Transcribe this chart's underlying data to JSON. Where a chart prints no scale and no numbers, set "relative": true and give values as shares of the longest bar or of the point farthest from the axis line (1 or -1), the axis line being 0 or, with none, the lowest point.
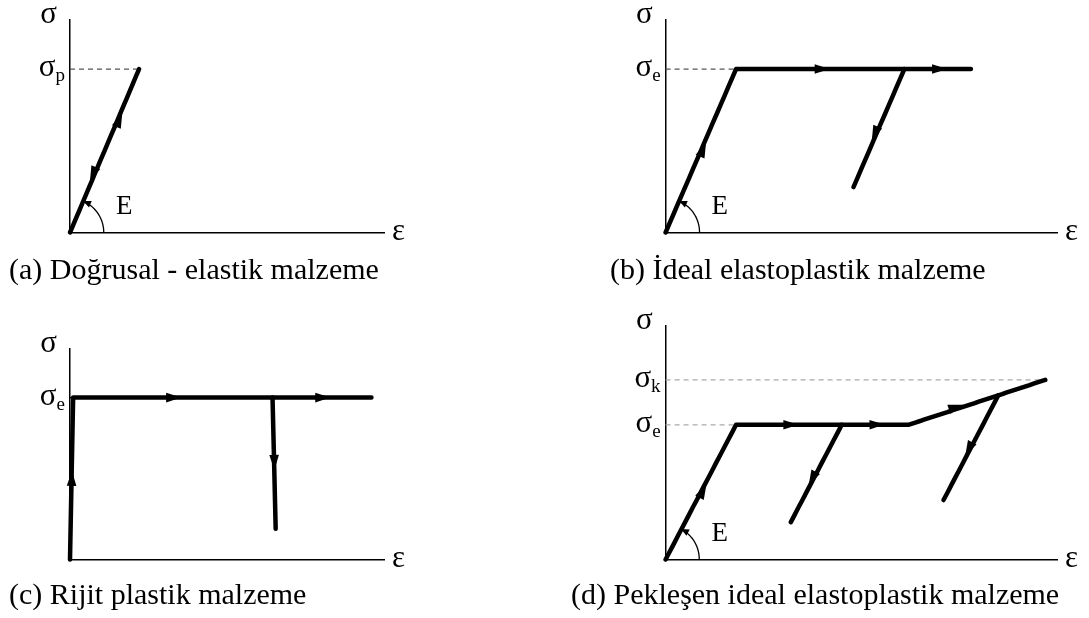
{
  "chart_data": [
    {
      "type": "line",
      "title": "(a) Doğrusal - elastik malzeme",
      "xlabel": "ε",
      "ylabel": "σ",
      "relative": true,
      "categories": [
        null,
        null,
        null,
        null,
        null,
        null,
        null,
        null,
        null,
        null,
        null,
        null,
        null,
        null,
        null,
        null,
        null,
        null,
        null,
        null,
        null,
        null,
        null,
        null,
        null,
        null,
        null,
        null,
        null,
        null,
        null,
        null,
        null,
        null,
        null,
        null,
        null,
        null,
        null,
        null,
        null,
        null,
        null,
        null,
        null,
        null,
        null,
        null,
        null,
        null,
        null,
        null,
        null,
        null,
        null,
        null,
        null,
        null,
        null,
        null,
        null,
        null,
        null,
        null,
        null,
        null,
        null,
        null,
        null,
        null,
        null,
        null,
        null,
        null,
        null,
        null,
        null,
        null,
        null,
        null,
        null,
        null,
        null,
        null,
        null,
        null,
        null,
        null,
        null,
        null,
        null,
        null,
        null,
        null,
        null,
        null,
        null,
        null,
        null,
        null,
        null
      ],
      "series": [
        {
          "color": "#000000",
          "values": [
            0,
            0.045,
            0.091,
            0.136,
            0.182,
            0.227,
            0.273,
            0.318,
            0.364,
            0.409,
            0.455,
            0.5,
            0.545,
            0.591,
            0.636,
            0.682,
            0.727,
            0.773,
            0.818,
            0.864,
            0.909,
            0.955,
            1,
            null,
            null,
            null,
            null,
            null,
            null,
            null,
            null,
            null,
            null,
            null,
            null,
            null,
            null,
            null,
            null,
            null,
            null,
            null,
            null,
            null,
            null,
            null,
            null,
            null,
            null,
            null,
            null,
            null,
            null,
            null,
            null,
            null,
            null,
            null,
            null,
            null,
            null,
            null,
            null,
            null,
            null,
            null,
            null,
            null,
            null,
            null,
            null,
            null,
            null,
            null,
            null,
            null,
            null,
            null,
            null,
            null,
            null,
            null,
            null,
            null,
            null,
            null,
            null,
            null,
            null,
            null,
            null,
            null,
            null,
            null,
            null,
            null,
            null,
            null,
            null,
            null,
            null
          ]
        }
      ],
      "ref_lines": [
        {
          "axis": "y",
          "value": 1,
          "label": "σ$_{p}$",
          "color": "#555555",
          "line_style": "dashed"
        }
      ],
      "annotations": [
        "E"
      ]
    },
    {
      "type": "line",
      "title": "(b) İdeal elastoplastik malzeme",
      "xlabel": "ε",
      "ylabel": "σ",
      "relative": true,
      "categories": [
        null,
        null,
        null,
        null,
        null,
        null,
        null,
        null,
        null,
        null,
        null,
        null,
        null,
        null,
        null,
        null,
        null,
        null,
        null,
        null,
        null,
        null,
        null,
        null,
        null,
        null,
        null,
        null,
        null,
        null,
        null,
        null,
        null,
        null,
        null,
        null,
        null,
        null,
        null,
        null,
        null,
        null,
        null,
        null,
        null,
        null,
        null,
        null,
        null,
        null,
        null,
        null,
        null,
        null,
        null,
        null,
        null,
        null,
        null,
        null,
        null,
        null,
        null,
        null,
        null,
        null,
        null,
        null,
        null,
        null,
        null,
        null,
        null,
        null,
        null,
        null,
        null,
        null,
        null,
        null,
        null,
        null,
        null,
        null,
        null,
        null,
        null,
        null,
        null,
        null,
        null,
        null,
        null,
        null,
        null,
        null,
        null,
        null,
        null,
        null,
        null
      ],
      "series": [
        {
          "color": "#000000",
          "values": [
            0,
            0.056,
            0.111,
            0.167,
            0.222,
            0.278,
            0.333,
            0.389,
            0.444,
            0.5,
            0.556,
            0.611,
            0.667,
            0.722,
            0.778,
            0.833,
            0.889,
            0.944,
            1,
            1,
            1,
            1,
            1,
            1,
            1,
            1,
            1,
            1,
            1,
            1,
            1,
            1,
            1,
            1,
            1,
            1,
            1,
            1,
            1,
            1,
            1,
            1,
            1,
            1,
            1,
            1,
            1,
            1,
            1,
            1,
            1,
            1,
            1,
            1,
            1,
            1,
            1,
            1,
            1,
            1,
            1,
            1,
            1,
            1,
            1,
            1,
            1,
            1,
            1,
            1,
            1,
            1,
            1,
            1,
            1,
            1,
            1,
            1,
            1,
            null,
            null,
            null,
            null,
            null,
            null,
            null,
            null,
            null,
            null,
            null,
            null,
            null,
            null,
            null,
            null,
            null,
            null,
            null,
            null,
            null,
            null
          ]
        },
        {
          "color": "#000000",
          "values": [
            null,
            null,
            null,
            null,
            null,
            null,
            null,
            null,
            null,
            null,
            null,
            null,
            null,
            null,
            null,
            null,
            null,
            null,
            null,
            null,
            null,
            null,
            null,
            null,
            null,
            null,
            null,
            null,
            null,
            null,
            null,
            null,
            null,
            null,
            null,
            null,
            null,
            null,
            null,
            null,
            null,
            null,
            null,
            null,
            null,
            null,
            null,
            null,
            0.278,
            0.333,
            0.389,
            0.444,
            0.5,
            0.556,
            0.611,
            0.667,
            0.722,
            0.778,
            0.833,
            0.889,
            0.944,
            1,
            null,
            null,
            null,
            null,
            null,
            null,
            null,
            null,
            null,
            null,
            null,
            null,
            null,
            null,
            null,
            null,
            null,
            null,
            null,
            null,
            null,
            null,
            null,
            null,
            null,
            null,
            null,
            null,
            null,
            null,
            null,
            null,
            null,
            null,
            null,
            null,
            null,
            null,
            null
          ]
        }
      ],
      "ref_lines": [
        {
          "axis": "y",
          "value": 1,
          "label": "σ$_{e}$",
          "color": "#555555",
          "line_style": "dashed"
        }
      ],
      "annotations": [
        "E"
      ]
    },
    {
      "type": "line",
      "title": "(c) Rijit plastik malzeme",
      "xlabel": "ε",
      "ylabel": "σ",
      "relative": true,
      "categories": [
        null,
        null,
        null,
        null,
        null,
        null,
        null,
        null,
        null,
        null,
        null,
        null,
        null,
        null,
        null,
        null,
        null,
        null,
        null,
        null,
        null,
        null,
        null,
        null,
        null,
        null,
        null,
        null,
        null,
        null,
        null,
        null,
        null,
        null,
        null,
        null,
        null,
        null,
        null,
        null,
        null,
        null,
        null,
        null,
        null,
        null,
        null,
        null,
        null,
        null,
        null,
        null,
        null,
        null,
        null,
        null,
        null,
        null,
        null,
        null,
        null,
        null,
        null,
        null,
        null,
        null,
        null,
        null,
        null,
        null,
        null,
        null,
        null,
        null,
        null,
        null,
        null,
        null,
        null,
        null,
        null,
        null,
        null,
        null,
        null,
        null,
        null,
        null,
        null,
        null,
        null,
        null,
        null,
        null,
        null,
        null,
        null,
        null,
        null,
        null,
        null,
        null,
        null,
        null,
        null,
        null,
        null,
        null,
        null,
        null,
        null,
        null,
        null,
        null,
        null,
        null,
        null,
        null,
        null,
        null,
        null,
        null,
        null,
        null,
        null,
        null,
        null,
        null,
        null,
        null,
        null,
        null,
        null,
        null,
        null,
        null,
        null,
        null,
        null,
        null,
        null,
        null,
        null,
        null,
        null,
        null,
        null,
        null,
        null,
        null,
        null,
        null,
        null,
        null,
        null,
        null,
        null,
        null,
        null,
        null,
        null,
        null,
        null,
        null,
        null,
        null,
        null,
        null,
        null,
        null,
        null,
        null,
        null,
        null,
        null,
        null,
        null,
        null,
        null,
        null,
        null,
        null,
        null,
        null,
        null,
        null,
        null,
        null,
        null,
        null,
        null,
        null,
        null,
        null,
        null,
        null,
        null,
        null,
        null,
        null,
        null
      ],
      "series": [
        {
          "color": "#000000",
          "values": [
            0,
            0.5,
            1,
            1,
            1,
            1,
            1,
            1,
            1,
            1,
            1,
            1,
            1,
            1,
            1,
            1,
            1,
            1,
            1,
            1,
            1,
            1,
            1,
            1,
            1,
            1,
            1,
            1,
            1,
            1,
            1,
            1,
            1,
            1,
            1,
            1,
            1,
            1,
            1,
            1,
            1,
            1,
            1,
            1,
            1,
            1,
            1,
            1,
            1,
            1,
            1,
            1,
            1,
            1,
            1,
            1,
            1,
            1,
            1,
            1,
            1,
            1,
            1,
            1,
            1,
            1,
            1,
            1,
            1,
            1,
            1,
            1,
            1,
            1,
            1,
            1,
            1,
            1,
            1,
            1,
            1,
            1,
            1,
            1,
            1,
            1,
            1,
            1,
            1,
            1,
            1,
            1,
            1,
            1,
            1,
            1,
            1,
            1,
            1,
            1,
            1,
            1,
            1,
            1,
            1,
            1,
            1,
            1,
            1,
            1,
            1,
            1,
            1,
            1,
            1,
            1,
            1,
            1,
            1,
            1,
            1,
            1,
            1,
            1,
            1,
            1,
            1,
            1,
            1,
            1,
            1,
            1,
            1,
            1,
            1,
            1,
            1,
            1,
            1,
            1,
            1,
            1,
            1,
            1,
            1,
            1,
            1,
            1,
            1,
            1,
            1,
            1,
            1,
            1,
            1,
            1,
            1,
            1,
            1,
            1,
            1,
            1,
            1,
            1,
            1,
            1,
            1,
            1,
            1,
            1,
            1,
            1,
            1,
            1,
            1,
            1,
            1,
            1,
            1,
            1,
            1,
            1,
            1,
            1,
            1,
            1,
            1,
            1,
            1,
            1,
            1,
            1,
            1,
            null,
            null,
            null,
            null,
            null,
            null,
            null,
            null
          ]
        },
        {
          "color": "#000000",
          "values": [
            null,
            null,
            null,
            null,
            null,
            null,
            null,
            null,
            null,
            null,
            null,
            null,
            null,
            null,
            null,
            null,
            null,
            null,
            null,
            null,
            null,
            null,
            null,
            null,
            null,
            null,
            null,
            null,
            null,
            null,
            null,
            null,
            null,
            null,
            null,
            null,
            null,
            null,
            null,
            null,
            null,
            null,
            null,
            null,
            null,
            null,
            null,
            null,
            null,
            null,
            null,
            null,
            null,
            null,
            null,
            null,
            null,
            null,
            null,
            null,
            null,
            null,
            null,
            null,
            null,
            null,
            null,
            null,
            null,
            null,
            null,
            null,
            null,
            null,
            null,
            null,
            null,
            null,
            null,
            null,
            null,
            null,
            null,
            null,
            null,
            null,
            null,
            null,
            null,
            null,
            null,
            null,
            null,
            null,
            null,
            null,
            null,
            null,
            null,
            null,
            null,
            null,
            null,
            null,
            null,
            null,
            null,
            null,
            null,
            null,
            null,
            null,
            null,
            null,
            null,
            null,
            null,
            null,
            null,
            null,
            null,
            null,
            null,
            null,
            null,
            null,
            null,
            null,
            null,
            1,
            0.6,
            0.19,
            null,
            null,
            null,
            null,
            null,
            null,
            null,
            null,
            null,
            null,
            null,
            null,
            null,
            null,
            null,
            null,
            null,
            null,
            null,
            null,
            null,
            null,
            null,
            null,
            null,
            null,
            null,
            null,
            null,
            null,
            null,
            null,
            null,
            null,
            null,
            null,
            null,
            null,
            null,
            null,
            null,
            null,
            null,
            null,
            null,
            null,
            null,
            null,
            null,
            null,
            null,
            null,
            null,
            null,
            null,
            null,
            null,
            null,
            null,
            null,
            null,
            null,
            null,
            null,
            null,
            null,
            null,
            null,
            null
          ]
        }
      ],
      "ref_lines": [
        {
          "axis": "y",
          "value": 1,
          "label": "σ$_{e}$"
        }
      ]
    },
    {
      "type": "line",
      "title": "(d) Pekleşen ideal elastoplastik malzeme",
      "xlabel": "ε",
      "ylabel": "σ",
      "relative": true,
      "categories": [
        null,
        null,
        null,
        null,
        null,
        null,
        null,
        null,
        null,
        null,
        null,
        null,
        null,
        null,
        null,
        null,
        null,
        null,
        null,
        null,
        null,
        null,
        null,
        null,
        null,
        null,
        null,
        null,
        null,
        null,
        null,
        null,
        null,
        null,
        null,
        null,
        null,
        null,
        null,
        null,
        null,
        null,
        null,
        null,
        null,
        null,
        null,
        null,
        null,
        null,
        null,
        null,
        null,
        null,
        null,
        null,
        null,
        null,
        null,
        null,
        null,
        null,
        null,
        null,
        null,
        null,
        null,
        null,
        null,
        null,
        null,
        null,
        null,
        null,
        null,
        null,
        null,
        null,
        null,
        null,
        null,
        null,
        null,
        null,
        null,
        null,
        null,
        null,
        null,
        null,
        null,
        null,
        null,
        null,
        null,
        null,
        null,
        null,
        null,
        null,
        null
      ],
      "series": [
        {
          "color": "#000000",
          "values": [
            0,
            0.042,
            0.083,
            0.125,
            0.167,
            0.208,
            0.25,
            0.292,
            0.333,
            0.375,
            0.417,
            0.458,
            0.5,
            0.542,
            0.583,
            0.625,
            0.667,
            0.708,
            0.75,
            0.75,
            0.75,
            0.75,
            0.75,
            0.75,
            0.75,
            0.75,
            0.75,
            0.75,
            0.75,
            0.75,
            0.75,
            0.75,
            0.75,
            0.75,
            0.75,
            0.75,
            0.75,
            0.75,
            0.75,
            0.75,
            0.75,
            0.75,
            0.75,
            0.75,
            0.75,
            0.75,
            0.75,
            0.75,
            0.75,
            0.75,
            0.75,
            0.75,
            0.75,
            0.75,
            0.75,
            0.75,
            0.75,
            0.75,
            0.75,
            0.75,
            0.75,
            0.75,
            0.75,
            0.757,
            0.764,
            0.771,
            0.779,
            0.786,
            0.793,
            0.8,
            0.807,
            0.814,
            0.821,
            0.829,
            0.836,
            0.843,
            0.85,
            0.857,
            0.864,
            0.871,
            0.879,
            0.886,
            0.893,
            0.9,
            0.907,
            0.914,
            0.921,
            0.929,
            0.936,
            0.943,
            0.95,
            0.957,
            0.964,
            0.971,
            0.979,
            0.986,
            0.993,
            1,
            null,
            null,
            null
          ]
        },
        {
          "color": "#000000",
          "values": [
            null,
            null,
            null,
            null,
            null,
            null,
            null,
            null,
            null,
            null,
            null,
            null,
            null,
            null,
            null,
            null,
            null,
            null,
            null,
            null,
            null,
            null,
            null,
            null,
            null,
            null,
            null,
            null,
            null,
            null,
            null,
            null,
            0.208,
            0.25,
            0.292,
            0.333,
            0.375,
            0.417,
            0.458,
            0.5,
            0.542,
            0.583,
            0.625,
            0.667,
            0.708,
            0.75,
            null,
            null,
            null,
            null,
            null,
            null,
            null,
            null,
            null,
            null,
            null,
            null,
            null,
            null,
            null,
            null,
            null,
            null,
            null,
            null,
            null,
            null,
            null,
            null,
            null,
            null,
            null,
            null,
            null,
            null,
            null,
            null,
            null,
            null,
            null,
            null,
            null,
            null,
            null,
            null,
            null,
            null,
            null,
            null,
            null,
            null,
            null,
            null,
            null,
            null,
            null,
            null,
            null,
            null,
            null
          ]
        },
        {
          "color": "#000000",
          "values": [
            null,
            null,
            null,
            null,
            null,
            null,
            null,
            null,
            null,
            null,
            null,
            null,
            null,
            null,
            null,
            null,
            null,
            null,
            null,
            null,
            null,
            null,
            null,
            null,
            null,
            null,
            null,
            null,
            null,
            null,
            null,
            null,
            null,
            null,
            null,
            null,
            null,
            null,
            null,
            null,
            null,
            null,
            null,
            null,
            null,
            null,
            null,
            null,
            null,
            null,
            null,
            null,
            null,
            null,
            null,
            null,
            null,
            null,
            null,
            null,
            null,
            null,
            null,
            null,
            null,
            null,
            null,
            null,
            null,
            null,
            null,
            0.331,
            0.372,
            0.414,
            0.456,
            0.497,
            0.539,
            0.581,
            0.622,
            0.664,
            0.706,
            0.747,
            0.789,
            0.831,
            0.872,
            0.914,
            null,
            null,
            null,
            null,
            null,
            null,
            null,
            null,
            null,
            null,
            null,
            null,
            null,
            null,
            null
          ]
        }
      ],
      "ref_lines": [
        {
          "axis": "y",
          "value": 1,
          "label": "σ$_{k}$",
          "color": "#aaaaaa",
          "line_style": "dashed"
        },
        {
          "axis": "y",
          "value": 0.75,
          "label": "σ$_{e}$",
          "color": "#aaaaaa",
          "line_style": "dashed"
        }
      ],
      "annotations": [
        "E"
      ]
    }
  ]
}
